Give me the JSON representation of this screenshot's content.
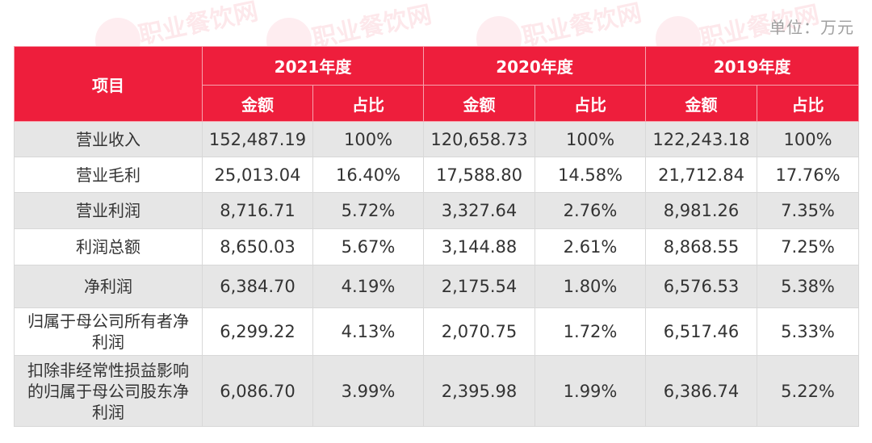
{
  "unit_label": "单位：万元",
  "watermark": "职业餐饮网",
  "header": {
    "item": "项目",
    "years": [
      "2021年度",
      "2020年度",
      "2019年度"
    ],
    "amount": "金额",
    "ratio": "占比"
  },
  "rows": [
    {
      "label": "营业收入",
      "cells": [
        "152,487.19",
        "100%",
        "120,658.73",
        "100%",
        "122,243.18",
        "100%"
      ]
    },
    {
      "label": "营业毛利",
      "cells": [
        "25,013.04",
        "16.40%",
        "17,588.80",
        "14.58%",
        "21,712.84",
        "17.76%"
      ]
    },
    {
      "label": "营业利润",
      "cells": [
        "8,716.71",
        "5.72%",
        "3,327.64",
        "2.76%",
        "8,981.26",
        "7.35%"
      ]
    },
    {
      "label": "利润总额",
      "cells": [
        "8,650.03",
        "5.67%",
        "3,144.88",
        "2.61%",
        "8,868.55",
        "7.25%"
      ]
    },
    {
      "label": "净利润",
      "cells": [
        "6,384.70",
        "4.19%",
        "2,175.54",
        "1.80%",
        "6,576.53",
        "5.38%"
      ]
    },
    {
      "label": "归属于母公司所有者净利润",
      "cells": [
        "6,299.22",
        "4.13%",
        "2,070.75",
        "1.72%",
        "6,517.46",
        "5.33%"
      ]
    },
    {
      "label": "扣除非经常性损益影响的归属于母公司股东净利润",
      "cells": [
        "6,086.70",
        "3.99%",
        "2,395.98",
        "1.99%",
        "6,386.74",
        "5.22%"
      ]
    }
  ]
}
